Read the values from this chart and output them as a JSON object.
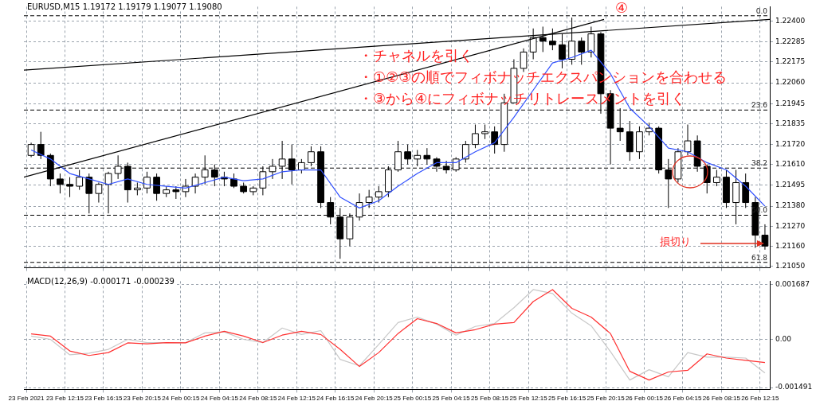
{
  "chart_data": [
    {
      "type": "candlestick",
      "title": "EURUSD,M15  1.19172 1.19179 1.19077 1.19080",
      "x": [
        "2021-02-23T08:45",
        "2021-02-23T09:45",
        "2021-02-23T10:45",
        "2021-02-23T11:45",
        "2021-02-23T12:45",
        "2021-02-23T13:45",
        "2021-02-23T14:45",
        "2021-02-23T15:45",
        "2021-02-23T16:45",
        "2021-02-23T17:45",
        "2021-02-23T18:45",
        "2021-02-23T19:45",
        "2021-02-23T20:45",
        "2021-02-23T21:45",
        "2021-02-23T22:45",
        "2021-02-23T23:45",
        "2021-02-24T00:45",
        "2021-02-24T01:45",
        "2021-02-24T02:45",
        "2021-02-24T03:45",
        "2021-02-24T04:45",
        "2021-02-24T05:45",
        "2021-02-24T06:45",
        "2021-02-24T07:45",
        "2021-02-24T08:45",
        "2021-02-24T09:45",
        "2021-02-24T10:45",
        "2021-02-24T11:45",
        "2021-02-24T12:45",
        "2021-02-24T13:45",
        "2021-02-24T14:45",
        "2021-02-24T15:45",
        "2021-02-24T16:45",
        "2021-02-24T17:45",
        "2021-02-24T18:45",
        "2021-02-24T19:45",
        "2021-02-24T20:45",
        "2021-02-24T21:45",
        "2021-02-24T22:45",
        "2021-02-24T23:45",
        "2021-02-25T00:45",
        "2021-02-25T01:45",
        "2021-02-25T02:45",
        "2021-02-25T03:45",
        "2021-02-25T04:45",
        "2021-02-25T05:45",
        "2021-02-25T06:45",
        "2021-02-25T07:45",
        "2021-02-25T08:45",
        "2021-02-25T09:45",
        "2021-02-25T10:45",
        "2021-02-25T11:45",
        "2021-02-25T12:45",
        "2021-02-25T13:45",
        "2021-02-25T14:45",
        "2021-02-25T15:45",
        "2021-02-25T16:45",
        "2021-02-25T17:45",
        "2021-02-25T18:45",
        "2021-02-25T19:45",
        "2021-02-25T20:45",
        "2021-02-25T21:45",
        "2021-02-25T22:45",
        "2021-02-25T23:45",
        "2021-02-26T00:45",
        "2021-02-26T01:45",
        "2021-02-26T02:45",
        "2021-02-26T03:45",
        "2021-02-26T04:45",
        "2021-02-26T05:45",
        "2021-02-26T06:45",
        "2021-02-26T07:45",
        "2021-02-26T08:45",
        "2021-02-26T09:45",
        "2021-02-26T10:45",
        "2021-02-26T11:45",
        "2021-02-26T12:45"
      ],
      "ohlc": [
        [
          1.2166,
          1.2173,
          1.2165,
          1.2172
        ],
        [
          1.2172,
          1.2179,
          1.2164,
          1.2166
        ],
        [
          1.2166,
          1.2167,
          1.2149,
          1.2153
        ],
        [
          1.2153,
          1.2156,
          1.2145,
          1.215
        ],
        [
          1.215,
          1.2154,
          1.2143,
          1.2149
        ],
        [
          1.2149,
          1.2158,
          1.2147,
          1.2154
        ],
        [
          1.2154,
          1.2156,
          1.2134,
          1.2145
        ],
        [
          1.2145,
          1.2151,
          1.214,
          1.215
        ],
        [
          1.215,
          1.2157,
          1.2134,
          1.2156
        ],
        [
          1.2156,
          1.2166,
          1.2153,
          1.216
        ],
        [
          1.216,
          1.2162,
          1.214,
          1.2147
        ],
        [
          1.2147,
          1.2151,
          1.2144,
          1.2148
        ],
        [
          1.2148,
          1.2157,
          1.2145,
          1.2154
        ],
        [
          1.2154,
          1.2156,
          1.2141,
          1.2145
        ],
        [
          1.2145,
          1.2149,
          1.2143,
          1.2147
        ],
        [
          1.2147,
          1.2149,
          1.2142,
          1.2146
        ],
        [
          1.2146,
          1.2153,
          1.2143,
          1.2149
        ],
        [
          1.2149,
          1.2156,
          1.2145,
          1.2154
        ],
        [
          1.2154,
          1.2166,
          1.215,
          1.2158
        ],
        [
          1.2158,
          1.2161,
          1.2149,
          1.2154
        ],
        [
          1.2154,
          1.2157,
          1.2149,
          1.2153
        ],
        [
          1.2153,
          1.2156,
          1.2148,
          1.2149
        ],
        [
          1.2149,
          1.2151,
          1.2145,
          1.2146
        ],
        [
          1.2146,
          1.2149,
          1.2144,
          1.2148
        ],
        [
          1.2148,
          1.216,
          1.2144,
          1.2157
        ],
        [
          1.2157,
          1.2164,
          1.2153,
          1.216
        ],
        [
          1.216,
          1.2174,
          1.2153,
          1.2164
        ],
        [
          1.2164,
          1.2172,
          1.215,
          1.2158
        ],
        [
          1.2158,
          1.2164,
          1.2156,
          1.2162
        ],
        [
          1.2162,
          1.2171,
          1.216,
          1.2168
        ],
        [
          1.2168,
          1.2171,
          1.2137,
          1.214
        ],
        [
          1.214,
          1.2143,
          1.2128,
          1.2132
        ],
        [
          1.2132,
          1.2137,
          1.2109,
          1.212
        ],
        [
          1.212,
          1.2134,
          1.2116,
          1.2132
        ],
        [
          1.2132,
          1.2145,
          1.213,
          1.214
        ],
        [
          1.214,
          1.2147,
          1.2137,
          1.2143
        ],
        [
          1.2143,
          1.2149,
          1.214,
          1.2146
        ],
        [
          1.2146,
          1.216,
          1.2143,
          1.2158
        ],
        [
          1.2158,
          1.2174,
          1.2157,
          1.2168
        ],
        [
          1.2168,
          1.2172,
          1.2161,
          1.2164
        ],
        [
          1.2164,
          1.2169,
          1.216,
          1.2166
        ],
        [
          1.2166,
          1.217,
          1.2161,
          1.2164
        ],
        [
          1.2164,
          1.2165,
          1.2157,
          1.216
        ],
        [
          1.216,
          1.2163,
          1.2156,
          1.2158
        ],
        [
          1.2158,
          1.2165,
          1.2157,
          1.2164
        ],
        [
          1.2164,
          1.2174,
          1.2162,
          1.2172
        ],
        [
          1.2172,
          1.2183,
          1.217,
          1.2178
        ],
        [
          1.2178,
          1.2183,
          1.2175,
          1.2179
        ],
        [
          1.2179,
          1.2182,
          1.2167,
          1.2172
        ],
        [
          1.2172,
          1.22,
          1.2168,
          1.2195
        ],
        [
          1.2195,
          1.2219,
          1.2195,
          1.2214
        ],
        [
          1.2214,
          1.2225,
          1.2212,
          1.2223
        ],
        [
          1.2223,
          1.2236,
          1.2219,
          1.2231
        ],
        [
          1.2231,
          1.2237,
          1.2223,
          1.2229
        ],
        [
          1.2229,
          1.2236,
          1.2224,
          1.2227
        ],
        [
          1.2227,
          1.2233,
          1.2214,
          1.2219
        ],
        [
          1.2219,
          1.2242,
          1.2216,
          1.2229
        ],
        [
          1.2229,
          1.2231,
          1.2216,
          1.2223
        ],
        [
          1.2223,
          1.2237,
          1.222,
          1.2233
        ],
        [
          1.2233,
          1.2234,
          1.2189,
          1.22
        ],
        [
          1.22,
          1.2202,
          1.2161,
          1.2181
        ],
        [
          1.2181,
          1.2192,
          1.2174,
          1.2179
        ],
        [
          1.2179,
          1.2185,
          1.2163,
          1.2168
        ],
        [
          1.2168,
          1.2182,
          1.2164,
          1.2179
        ],
        [
          1.2179,
          1.2184,
          1.2177,
          1.2181
        ],
        [
          1.2181,
          1.2182,
          1.2156,
          1.2158
        ],
        [
          1.2158,
          1.2164,
          1.2137,
          1.2153
        ],
        [
          1.2153,
          1.217,
          1.2151,
          1.2168
        ],
        [
          1.2168,
          1.2183,
          1.2166,
          1.2174
        ],
        [
          1.2174,
          1.2177,
          1.2157,
          1.216
        ],
        [
          1.216,
          1.2161,
          1.2145,
          1.2151
        ],
        [
          1.2151,
          1.2158,
          1.2149,
          1.2154
        ],
        [
          1.2154,
          1.2158,
          1.2137,
          1.214
        ],
        [
          1.214,
          1.2158,
          1.2128,
          1.2151
        ],
        [
          1.2151,
          1.2156,
          1.2137,
          1.214
        ],
        [
          1.214,
          1.2143,
          1.2115,
          1.2122
        ],
        [
          1.2122,
          1.2128,
          1.2114,
          1.2116
        ]
      ],
      "series": [
        {
          "type": "line",
          "color": "#3050ff",
          "x": [
            "2021-02-23T08:45",
            "2021-02-23T10:45",
            "2021-02-23T12:45",
            "2021-02-23T14:45",
            "2021-02-23T16:45",
            "2021-02-23T18:45",
            "2021-02-23T20:45",
            "2021-02-23T22:45",
            "2021-02-24T00:45",
            "2021-02-24T02:45",
            "2021-02-24T04:45",
            "2021-02-24T06:45",
            "2021-02-24T08:45",
            "2021-02-24T10:45",
            "2021-02-24T12:45",
            "2021-02-24T14:45",
            "2021-02-24T16:45",
            "2021-02-24T18:45",
            "2021-02-24T20:45",
            "2021-02-24T22:45",
            "2021-02-25T00:45",
            "2021-02-25T02:45",
            "2021-02-25T04:45",
            "2021-02-25T06:45",
            "2021-02-25T08:45",
            "2021-02-25T10:45",
            "2021-02-25T12:45",
            "2021-02-25T14:45",
            "2021-02-25T16:45",
            "2021-02-25T18:45",
            "2021-02-25T20:45",
            "2021-02-25T22:45",
            "2021-02-26T00:45",
            "2021-02-26T02:45",
            "2021-02-26T04:45",
            "2021-02-26T06:45",
            "2021-02-26T08:45",
            "2021-02-26T10:45",
            "2021-02-26T12:45"
          ],
          "values": [
            1.2169,
            1.2164,
            1.2156,
            1.2153,
            1.215,
            1.2153,
            1.215,
            1.2149,
            1.2148,
            1.2151,
            1.2154,
            1.2152,
            1.2153,
            1.2157,
            1.2158,
            1.2158,
            1.2143,
            1.2137,
            1.2141,
            1.2149,
            1.2156,
            1.2162,
            1.2162,
            1.2168,
            1.2173,
            1.2187,
            1.2202,
            1.2217,
            1.222,
            1.2224,
            1.2211,
            1.2192,
            1.2182,
            1.217,
            1.2168,
            1.2162,
            1.2158,
            1.2149,
            1.2138
          ]
        },
        {
          "type": "line",
          "color": "#000000",
          "x": [
            "2021-02-23T08:00",
            "2021-02-26T13:15"
          ],
          "values": [
            1.2213,
            1.2241
          ]
        },
        {
          "type": "line",
          "color": "#000000",
          "x": [
            "2021-02-23T08:00",
            "2021-02-25T20:05"
          ],
          "values": [
            1.2154,
            1.2241
          ]
        }
      ],
      "xlim": [
        "2021-02-23T08:00",
        "2021-02-26T13:15"
      ],
      "xticks": [
        {
          "value": "2021-02-23T08:15",
          "label": null
        },
        {
          "value": "2021-02-23T12:15",
          "label": null
        },
        {
          "value": "2021-02-23T16:15",
          "label": null
        },
        {
          "value": "2021-02-23T20:15",
          "label": null
        },
        {
          "value": "2021-02-24T00:15",
          "label": null
        },
        {
          "value": "2021-02-24T04:15",
          "label": null
        },
        {
          "value": "2021-02-24T08:15",
          "label": null
        },
        {
          "value": "2021-02-24T12:15",
          "label": null
        },
        {
          "value": "2021-02-24T16:15",
          "label": null
        },
        {
          "value": "2021-02-24T20:15",
          "label": null
        },
        {
          "value": "2021-02-25T00:15",
          "label": null
        },
        {
          "value": "2021-02-25T04:15",
          "label": null
        },
        {
          "value": "2021-02-25T08:15",
          "label": null
        },
        {
          "value": "2021-02-25T12:15",
          "label": null
        },
        {
          "value": "2021-02-25T16:15",
          "label": null
        },
        {
          "value": "2021-02-25T20:15",
          "label": null
        },
        {
          "value": "2021-02-26T00:15",
          "label": null
        },
        {
          "value": "2021-02-26T04:15",
          "label": null
        },
        {
          "value": "2021-02-26T08:15",
          "label": null
        },
        {
          "value": "2021-02-26T12:15",
          "label": null
        }
      ],
      "ylim": [
        1.2104,
        1.2248
      ],
      "yticks": [
        {
          "value": 1.224,
          "label": "1.22400"
        },
        1.22285,
        1.22175,
        {
          "value": 1.2206,
          "label": "1.22060"
        },
        1.21945,
        1.21835,
        {
          "value": 1.2172,
          "label": "1.21720"
        },
        {
          "value": 1.2161,
          "label": "1.21610"
        },
        1.21495,
        {
          "value": 1.2138,
          "label": "1.21380"
        },
        {
          "value": 1.2127,
          "label": "1.21270"
        },
        {
          "value": 1.2116,
          "label": "1.21160"
        },
        {
          "value": 1.2105,
          "label": "1.21050"
        }
      ],
      "tick_labels": "y",
      "grid": true,
      "ref_lines": [
        {
          "axis": "y",
          "value": 1.2243,
          "color": "#000000",
          "line_style": "dashed"
        },
        {
          "axis": "y",
          "value": 1.2191,
          "color": "#000000",
          "line_style": "dashed"
        },
        {
          "axis": "y",
          "value": 1.2159,
          "color": "#000000",
          "line_style": "dashed"
        },
        {
          "axis": "y",
          "value": 1.2133,
          "color": "#000000",
          "line_style": "dashed"
        },
        {
          "axis": "y",
          "value": 1.2107,
          "color": "#000000",
          "line_style": "dashed"
        }
      ],
      "annotations": [
        "・チャネルを引く",
        "・①②③の順でフィボナッチエクスパンションを合わせる",
        "・③から④にフィボナッチリトレースメントを引く",
        "④",
        "損切り",
        {
          "text": "0.0",
          "x": "2021-02-26T13:15",
          "y": 1.2243
        },
        {
          "text": "23.6",
          "x": "2021-02-26T13:15",
          "y": 1.2191
        },
        {
          "text": "38.2",
          "x": "2021-02-26T13:15",
          "y": 1.2159
        },
        {
          "text": "50.0",
          "x": "2021-02-26T13:15",
          "y": 1.2133
        },
        {
          "text": "61.8",
          "x": "2021-02-26T13:15",
          "y": 1.2107
        }
      ]
    },
    {
      "type": "line",
      "title": "MACD(12,26,9) -0.000171 -0.000239",
      "x": [
        "2021-02-23T08:45",
        "2021-02-23T10:45",
        "2021-02-23T12:45",
        "2021-02-23T14:45",
        "2021-02-23T16:45",
        "2021-02-23T18:45",
        "2021-02-23T20:45",
        "2021-02-23T22:45",
        "2021-02-24T00:45",
        "2021-02-24T02:45",
        "2021-02-24T04:45",
        "2021-02-24T06:45",
        "2021-02-24T08:45",
        "2021-02-24T10:45",
        "2021-02-24T12:45",
        "2021-02-24T14:45",
        "2021-02-24T16:45",
        "2021-02-24T18:45",
        "2021-02-24T20:45",
        "2021-02-24T22:45",
        "2021-02-25T00:45",
        "2021-02-25T02:45",
        "2021-02-25T04:45",
        "2021-02-25T06:45",
        "2021-02-25T08:45",
        "2021-02-25T10:45",
        "2021-02-25T12:45",
        "2021-02-25T14:45",
        "2021-02-25T16:45",
        "2021-02-25T18:45",
        "2021-02-25T20:45",
        "2021-02-25T22:45",
        "2021-02-26T00:45",
        "2021-02-26T02:45",
        "2021-02-26T04:45",
        "2021-02-26T06:45",
        "2021-02-26T08:45",
        "2021-02-26T10:45",
        "2021-02-26T12:45"
      ],
      "series": [
        {
          "color": "#c8c8c8",
          "values": [
            0.0001,
            0,
            -0.00048,
            -0.00043,
            -0.00031,
            0,
            -0.0001,
            -0.0001,
            -0.0001,
            0.0002,
            0.00023,
            0,
            -0.0001,
            0.00035,
            0.00015,
            0.00027,
            -0.00062,
            -0.00082,
            -0.00016,
            0.00052,
            0.00069,
            0.00047,
            0.00013,
            0.0004,
            0.00049,
            0.00098,
            0.00154,
            0.00142,
            0.00081,
            0.00042,
            -0.00038,
            -0.00126,
            -0.00094,
            -0.00116,
            -0.00041,
            -0.00055,
            -0.00055,
            -0.00058,
            -0.00104
          ]
        },
        {
          "color": "#ff3030",
          "values": [
            0.00017,
            0.0001,
            -0.00036,
            -0.0005,
            -0.00041,
            -0.00011,
            -0.00014,
            -0.0001,
            -0.00011,
            0.0001,
            0.00025,
            0.0001,
            -0.0001,
            0.00013,
            0.00025,
            0.00015,
            -0.00031,
            -0.00084,
            -0.00041,
            0.00018,
            0.00064,
            0.00049,
            0.0002,
            0.0003,
            0.00047,
            0.00052,
            0.00117,
            0.00154,
            0.00096,
            0.00069,
            0.00018,
            -0.00099,
            -0.00126,
            -0.00101,
            -0.00096,
            -0.00045,
            -0.00058,
            -0.00065,
            -0.00072
          ]
        }
      ],
      "xlim": [
        "2021-02-23T08:00",
        "2021-02-26T13:15"
      ],
      "xticks": [
        {
          "value": "2021-02-23T08:15",
          "label": "23 Feb 2021"
        },
        {
          "value": "2021-02-23T12:15",
          "label": "23 Feb 12:15"
        },
        {
          "value": "2021-02-23T16:15",
          "label": "23 Feb 16:15"
        },
        {
          "value": "2021-02-23T20:15",
          "label": "23 Feb 20:15"
        },
        {
          "value": "2021-02-24T00:15",
          "label": "24 Feb 00:15"
        },
        {
          "value": "2021-02-24T04:15",
          "label": "24 Feb 04:15"
        },
        {
          "value": "2021-02-24T08:15",
          "label": "24 Feb 08:15"
        },
        {
          "value": "2021-02-24T12:15",
          "label": "24 Feb 12:15"
        },
        {
          "value": "2021-02-24T16:15",
          "label": "24 Feb 16:15"
        },
        {
          "value": "2021-02-24T20:15",
          "label": "24 Feb 20:15"
        },
        {
          "value": "2021-02-25T00:15",
          "label": "25 Feb 00:15"
        },
        {
          "value": "2021-02-25T04:15",
          "label": "25 Feb 04:15"
        },
        {
          "value": "2021-02-25T08:15",
          "label": "25 Feb 08:15"
        },
        {
          "value": "2021-02-25T12:15",
          "label": "25 Feb 12:15"
        },
        {
          "value": "2021-02-25T16:15",
          "label": "25 Feb 16:15"
        },
        {
          "value": "2021-02-25T20:15",
          "label": "25 Feb 20:15"
        },
        {
          "value": "2021-02-26T00:15",
          "label": "26 Feb 00:15"
        },
        {
          "value": "2021-02-26T04:15",
          "label": "26 Feb 04:15"
        },
        {
          "value": "2021-02-26T08:15",
          "label": "26 Feb 08:15"
        },
        {
          "value": "2021-02-26T12:15",
          "label": "26 Feb 12:15"
        }
      ],
      "ylim": [
        -0.00155,
        0.0018
      ],
      "yticks": [
        0.001687,
        {
          "value": 0,
          "label": "0.00"
        },
        -0.001491
      ],
      "grid": true
    }
  ]
}
